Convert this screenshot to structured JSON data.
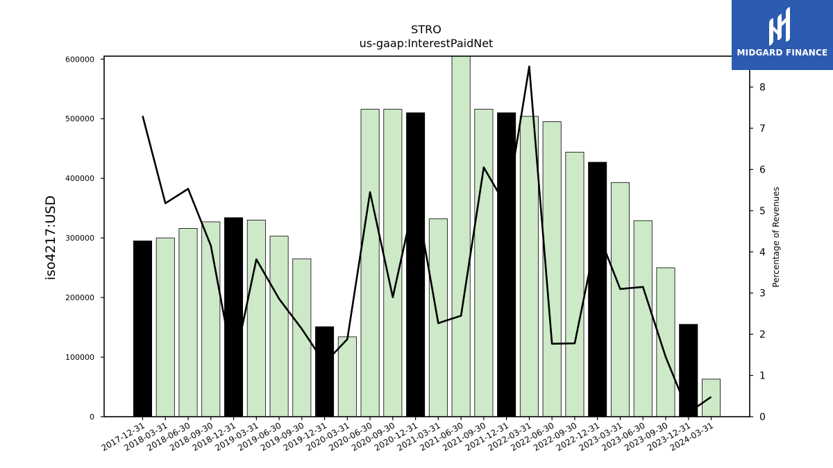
{
  "chart_data": {
    "type": "bar+line",
    "title": "STRO",
    "subtitle": "us-gaap:InterestPaidNet",
    "ylabel_left": "iso4217:USD",
    "ylabel_right": "Percentage of Revenues",
    "ylim_left": [
      0,
      605000
    ],
    "ylim_right": [
      0,
      8.75
    ],
    "yticks_left": [
      0,
      100000,
      200000,
      300000,
      400000,
      500000,
      600000
    ],
    "yticks_right": [
      0,
      1,
      2,
      3,
      4,
      5,
      6,
      7,
      8
    ],
    "categories": [
      "2017-12-31",
      "2018-03-31",
      "2018-06-30",
      "2018-09-30",
      "2018-12-31",
      "2019-03-31",
      "2019-06-30",
      "2019-09-30",
      "2019-12-31",
      "2020-03-31",
      "2020-06-30",
      "2020-09-30",
      "2020-12-31",
      "2021-03-31",
      "2021-06-30",
      "2021-09-30",
      "2021-12-31",
      "2022-03-31",
      "2022-06-30",
      "2022-09-30",
      "2022-12-31",
      "2023-03-31",
      "2023-06-30",
      "2023-09-30",
      "2023-12-31",
      "2024-03-31"
    ],
    "bar_values": [
      295000,
      300000,
      316000,
      327000,
      334000,
      330000,
      303000,
      265000,
      151000,
      134000,
      516000,
      516000,
      510000,
      332000,
      610000,
      516000,
      510000,
      504000,
      495000,
      444000,
      427000,
      393000,
      329000,
      250000,
      155000,
      63000
    ],
    "bar_highlight": [
      true,
      false,
      false,
      false,
      true,
      false,
      false,
      false,
      true,
      false,
      false,
      false,
      true,
      false,
      false,
      false,
      true,
      false,
      false,
      false,
      true,
      false,
      false,
      false,
      true,
      false
    ],
    "line_values": [
      7.3,
      5.18,
      5.53,
      4.15,
      1.2,
      3.82,
      2.86,
      2.13,
      1.3,
      1.88,
      5.45,
      2.9,
      5.4,
      2.27,
      2.45,
      6.05,
      5.1,
      8.5,
      1.77,
      1.78,
      4.5,
      3.1,
      3.15,
      1.45,
      0.1,
      0.48
    ],
    "colors": {
      "bar_highlight": "#000000",
      "bar_normal": "#cde9c8",
      "line": "#000000",
      "axis": "#000000"
    }
  },
  "logo": {
    "text": "MIDGARD FINANCE",
    "background": "#2d5bb0"
  }
}
